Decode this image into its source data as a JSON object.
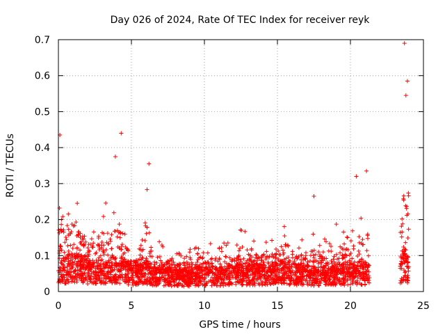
{
  "chart_data": {
    "type": "scatter",
    "title": "Day 026 of 2024, Rate Of TEC Index for receiver reyk",
    "xlabel": "GPS time / hours",
    "ylabel": "ROTI / TECUs",
    "xlim": [
      0,
      25
    ],
    "ylim": [
      0,
      0.7
    ],
    "xticks": [
      "0",
      "5",
      "10",
      "15",
      "20",
      "25"
    ],
    "yticks": [
      "0",
      "0.1",
      "0.2",
      "0.3",
      "0.4",
      "0.5",
      "0.6",
      "0.7"
    ],
    "grid": true,
    "marker": "+",
    "color": "#ff0000",
    "data_gaps_hours": [
      [
        21.3,
        23.4
      ]
    ],
    "notable_points": [
      {
        "x": 0.1,
        "y": 0.435
      },
      {
        "x": 4.3,
        "y": 0.44
      },
      {
        "x": 3.9,
        "y": 0.375
      },
      {
        "x": 6.2,
        "y": 0.355
      },
      {
        "x": 17.5,
        "y": 0.265
      },
      {
        "x": 20.4,
        "y": 0.32
      },
      {
        "x": 21.1,
        "y": 0.335
      },
      {
        "x": 23.7,
        "y": 0.69
      },
      {
        "x": 23.9,
        "y": 0.585
      },
      {
        "x": 23.8,
        "y": 0.545
      }
    ],
    "envelope": {
      "x": [
        0,
        0.5,
        1,
        1.5,
        2,
        2.5,
        3,
        3.5,
        4,
        4.5,
        5,
        5.5,
        6,
        6.5,
        7,
        7.5,
        8,
        8.5,
        9,
        9.5,
        10,
        10.5,
        11,
        11.5,
        12,
        12.5,
        13,
        13.5,
        14,
        14.5,
        15,
        15.5,
        16,
        16.5,
        17,
        17.5,
        18,
        18.5,
        19,
        19.5,
        20,
        20.5,
        21,
        21.3,
        23.4,
        23.6,
        23.8,
        24.0
      ],
      "median": [
        0.05,
        0.065,
        0.07,
        0.07,
        0.06,
        0.055,
        0.06,
        0.06,
        0.065,
        0.06,
        0.05,
        0.05,
        0.055,
        0.045,
        0.045,
        0.045,
        0.04,
        0.04,
        0.04,
        0.045,
        0.045,
        0.045,
        0.045,
        0.045,
        0.05,
        0.05,
        0.05,
        0.05,
        0.05,
        0.05,
        0.055,
        0.055,
        0.05,
        0.05,
        0.05,
        0.045,
        0.045,
        0.045,
        0.05,
        0.05,
        0.05,
        0.05,
        0.05,
        0.05,
        0.06,
        0.08,
        0.08,
        0.06
      ],
      "upper": [
        0.33,
        0.29,
        0.3,
        0.24,
        0.2,
        0.22,
        0.25,
        0.26,
        0.31,
        0.23,
        0.12,
        0.12,
        0.33,
        0.14,
        0.14,
        0.12,
        0.11,
        0.12,
        0.12,
        0.14,
        0.15,
        0.13,
        0.14,
        0.15,
        0.13,
        0.2,
        0.14,
        0.15,
        0.15,
        0.14,
        0.18,
        0.2,
        0.19,
        0.15,
        0.16,
        0.17,
        0.16,
        0.19,
        0.22,
        0.19,
        0.17,
        0.2,
        0.25,
        0.3,
        0.25,
        0.4,
        0.48,
        0.3
      ]
    }
  }
}
